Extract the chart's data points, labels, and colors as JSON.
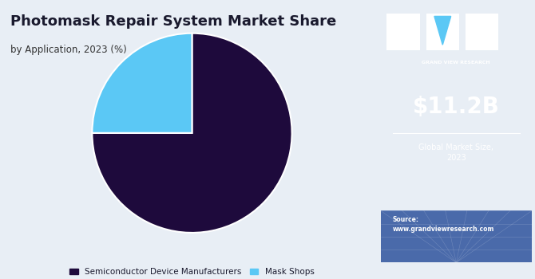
{
  "title": "Photomask Repair System Market Share",
  "subtitle": "by Application, 2023 (%)",
  "slices": [
    75,
    25
  ],
  "labels": [
    "Semiconductor Device Manufacturers",
    "Mask Shops"
  ],
  "colors": [
    "#1e0a3c",
    "#5bc8f5"
  ],
  "startangle": 90,
  "left_bg": "#e8eef5",
  "right_bg": "#3b0f6e",
  "right_bg_bottom": "#4a6aaa",
  "market_size": "$11.2B",
  "market_label": "Global Market Size,\n2023",
  "source_text": "Source:\nwww.grandviewresearch.com",
  "title_color": "#1a1a2e",
  "subtitle_color": "#333333",
  "legend_color": "#1a1a2e"
}
